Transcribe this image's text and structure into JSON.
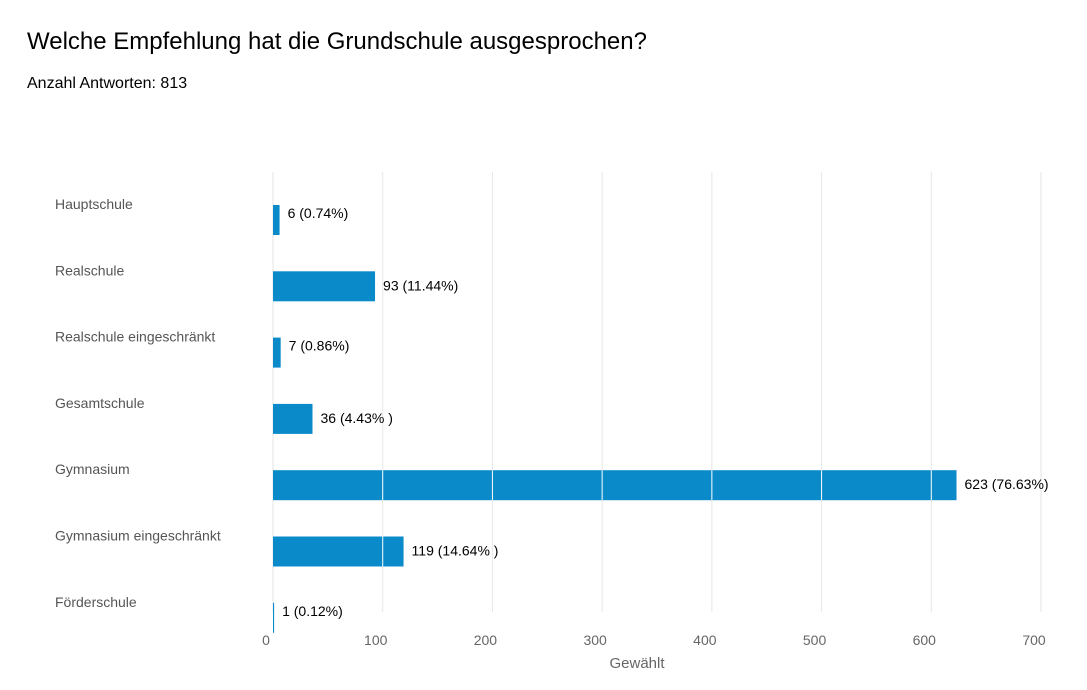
{
  "title": "Welche Empfehlung hat die Grundschule ausgesprochen?",
  "subtitle": "Anzahl Antworten: 813",
  "chart_data": {
    "type": "bar",
    "orientation": "horizontal",
    "categories": [
      "Hauptschule",
      "Realschule",
      "Realschule eingeschränkt",
      "Gesamtschule",
      "Gymnasium",
      "Gymnasium eingeschränkt",
      "Förderschule"
    ],
    "values": [
      6,
      93,
      7,
      36,
      623,
      119,
      1
    ],
    "data_labels": [
      "6 (0.74%)",
      "93 (11.44%)",
      "7 (0.86%)",
      "36 (4.43% )",
      "623 (76.63%)",
      "119 (14.64% )",
      "1 (0.12%)"
    ],
    "xlabel": "Gewählt",
    "ylabel": "",
    "xlim": [
      0,
      700
    ],
    "xticks": [
      0,
      100,
      200,
      300,
      400,
      500,
      600,
      700
    ],
    "grid": true,
    "bar_color": "#0a8ac8",
    "grid_color": "#e6e6e6"
  }
}
